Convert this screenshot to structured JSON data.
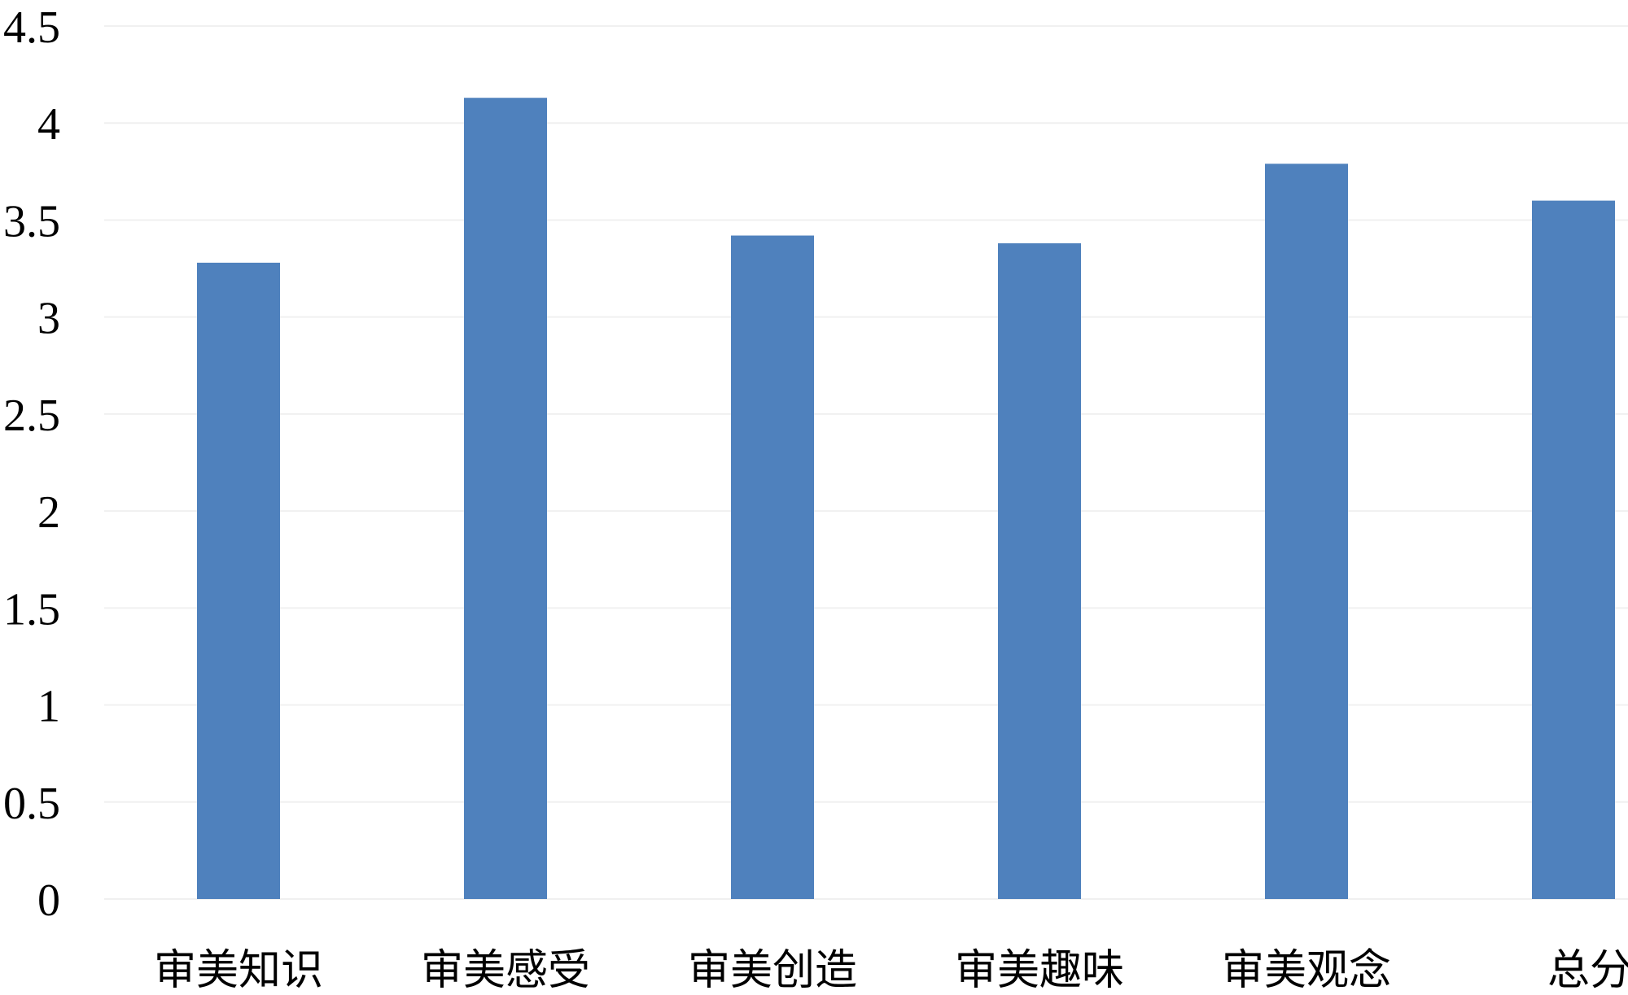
{
  "chart_data": {
    "type": "bar",
    "title": "",
    "xlabel": "",
    "ylabel": "",
    "categories": [
      "审美知识",
      "审美感受",
      "审美创造",
      "审美趣味",
      "审美观念",
      "总分"
    ],
    "values": [
      3.28,
      4.13,
      3.42,
      3.38,
      3.79,
      3.6
    ],
    "ylim": [
      0,
      4.5
    ],
    "yticks": [
      "0",
      "0.5",
      "1",
      "1.5",
      "2",
      "2.5",
      "3",
      "3.5",
      "4",
      "4.5"
    ],
    "grid": true,
    "legend": "none",
    "colors": {
      "bar": "#4f81bd",
      "grid": "#f0f0f0"
    }
  }
}
